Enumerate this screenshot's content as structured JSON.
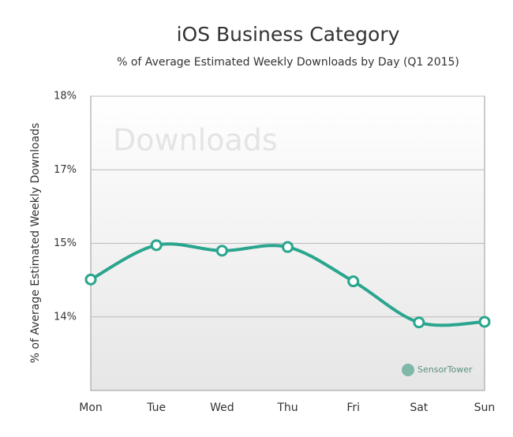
{
  "chart_data": {
    "type": "line",
    "title": "iOS Business Category",
    "subtitle": "% of Average Estimated Weekly Downloads by Day (Q1 2015)",
    "y_label": "% of  Average Estimated Weekly Downloads",
    "watermark": "Downloads",
    "brand": "SensorTower",
    "categories": [
      "Mon",
      "Tue",
      "Wed",
      "Thu",
      "Fri",
      "Sat",
      "Sun"
    ],
    "series": [
      {
        "name": "Downloads",
        "color": "#2aa58e",
        "values": [
          14.81,
          15.37,
          15.28,
          15.34,
          14.78,
          14.11,
          14.12
        ]
      }
    ],
    "ylim": [
      13.0,
      17.8
    ],
    "yticks": [
      {
        "value": 17.8,
        "label": "18%"
      },
      {
        "value": 16.6,
        "label": "17%"
      },
      {
        "value": 15.4,
        "label": "15%"
      },
      {
        "value": 14.2,
        "label": "14%"
      }
    ],
    "grid": true
  }
}
